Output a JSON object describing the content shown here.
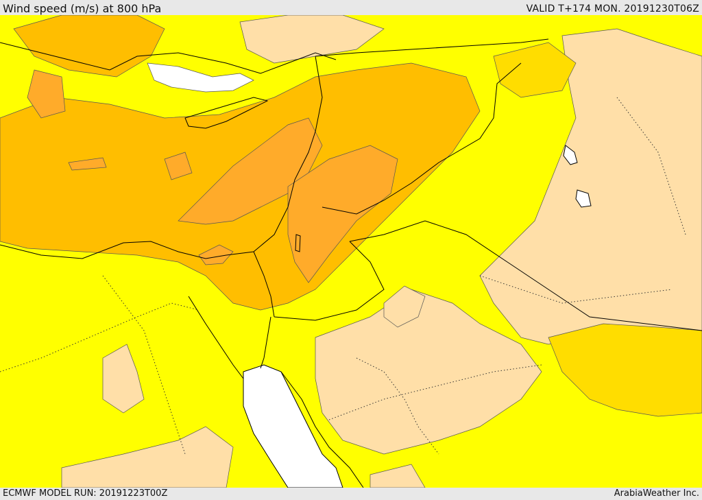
{
  "header": {
    "title": "Wind speed (m/s) at 800 hPa",
    "valid": "VALID T+174 MON. 20191230T06Z"
  },
  "footer": {
    "model_run": "ECMWF MODEL RUN: 20191223T00Z",
    "credit": "ArabiaWeather Inc."
  },
  "palette": {
    "calm": "#ffffff",
    "light": "#ffdfa8",
    "yellow": "#ffff00",
    "gold": "#ffdd00",
    "amber": "#ffbe00",
    "orange": "#ffab2a",
    "deep_orange": "#ff9a33"
  }
}
